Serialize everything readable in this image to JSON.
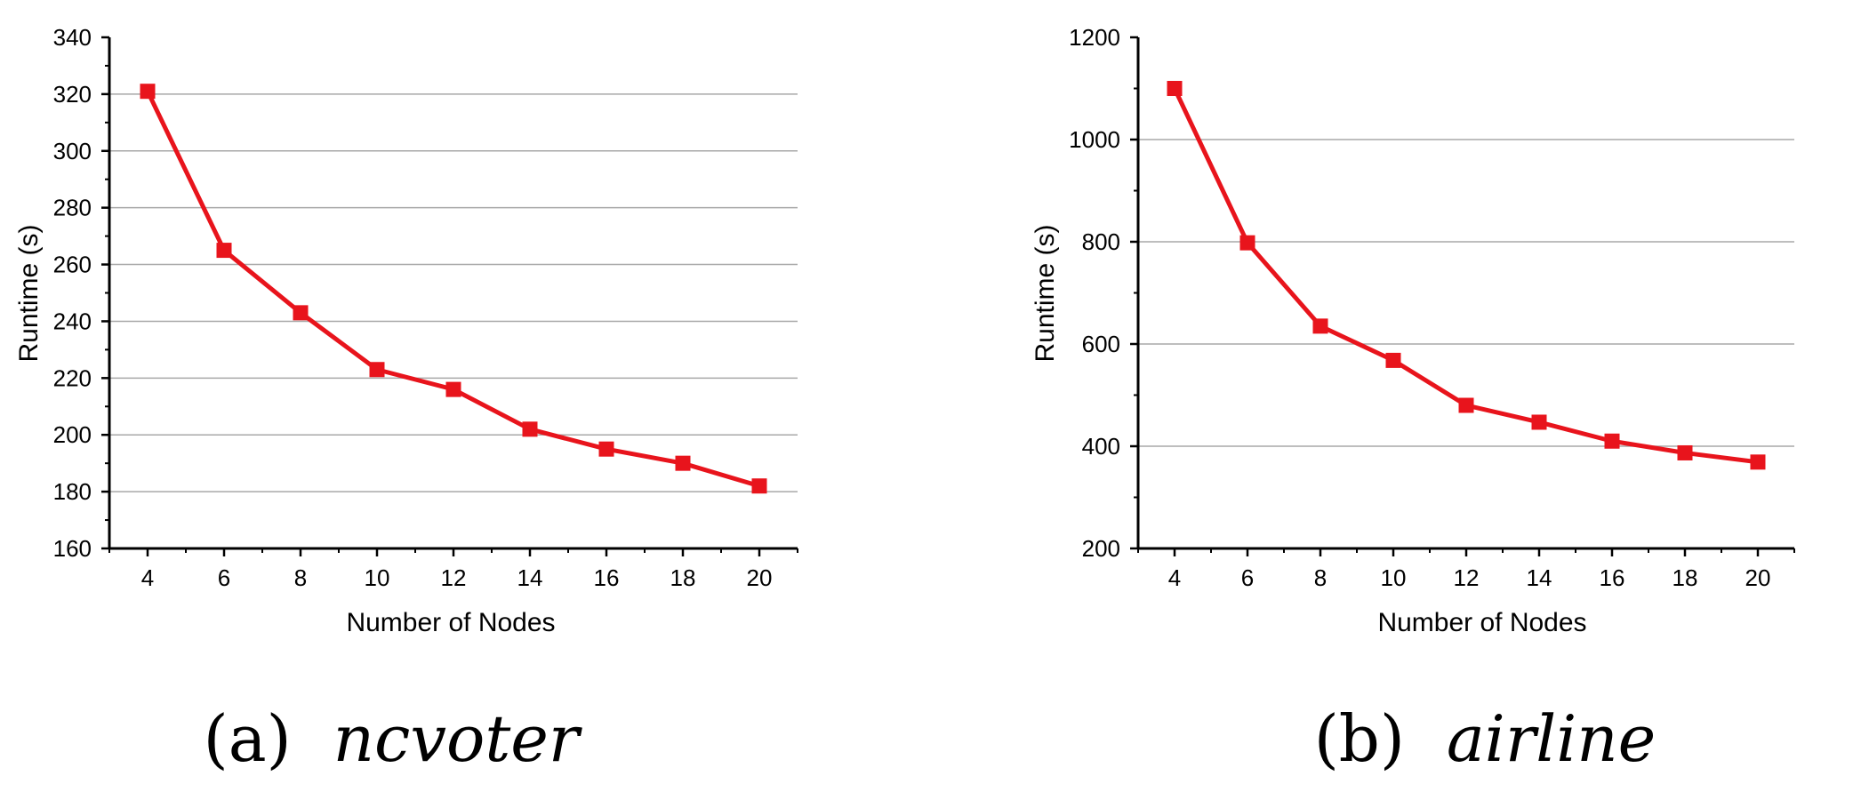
{
  "chart_data": [
    {
      "type": "line",
      "caption_label": "(a)",
      "caption_name": "ncvoter",
      "xlabel": "Number of Nodes",
      "ylabel": "Runtime (s)",
      "x": [
        4,
        6,
        8,
        10,
        12,
        14,
        16,
        18,
        20
      ],
      "series": [
        {
          "values": [
            321,
            265,
            243,
            223,
            216,
            202,
            195,
            190,
            182
          ],
          "color": "#e8141c"
        }
      ],
      "xlim": [
        3,
        21
      ],
      "ylim": [
        160,
        340
      ],
      "xticks": [
        4,
        6,
        8,
        10,
        12,
        14,
        16,
        18,
        20
      ],
      "yticks": [
        160,
        180,
        200,
        220,
        240,
        260,
        280,
        300,
        320,
        340
      ],
      "grid": "horizontal",
      "marker": "square"
    },
    {
      "type": "line",
      "caption_label": "(b)",
      "caption_name": "airline",
      "xlabel": "Number of Nodes",
      "ylabel": "Runtime (s)",
      "x": [
        4,
        6,
        8,
        10,
        12,
        14,
        16,
        18,
        20
      ],
      "series": [
        {
          "values": [
            1100,
            798,
            635,
            568,
            480,
            447,
            410,
            387,
            369
          ],
          "color": "#e8141c"
        }
      ],
      "xlim": [
        3,
        21
      ],
      "ylim": [
        200,
        1200
      ],
      "xticks": [
        4,
        6,
        8,
        10,
        12,
        14,
        16,
        18,
        20
      ],
      "yticks": [
        200,
        400,
        600,
        800,
        1000,
        1200
      ],
      "grid": "horizontal",
      "marker": "square"
    }
  ]
}
